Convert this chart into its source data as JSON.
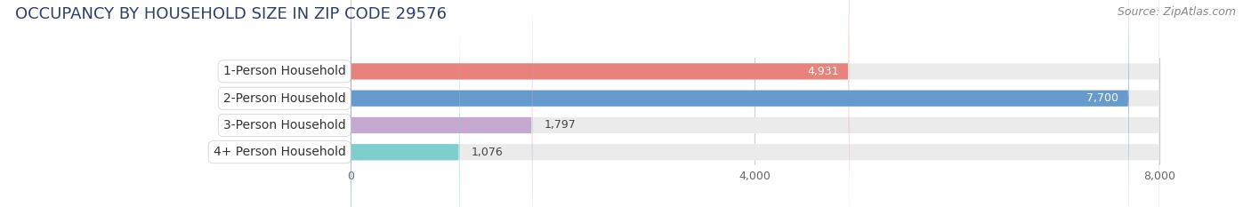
{
  "title": "OCCUPANCY BY HOUSEHOLD SIZE IN ZIP CODE 29576",
  "source": "Source: ZipAtlas.com",
  "categories": [
    "1-Person Household",
    "2-Person Household",
    "3-Person Household",
    "4+ Person Household"
  ],
  "values": [
    4931,
    7700,
    1797,
    1076
  ],
  "bar_colors": [
    "#E8827A",
    "#6699CC",
    "#C4A8D0",
    "#7ECECE"
  ],
  "bar_bg_color": "#EBEBEB",
  "xlim": [
    -1800,
    8600
  ],
  "data_xlim": [
    0,
    8000
  ],
  "xticks": [
    0,
    4000,
    8000
  ],
  "value_label_inside": [
    true,
    true,
    false,
    false
  ],
  "background_color": "#ffffff",
  "title_fontsize": 13,
  "source_fontsize": 9,
  "bar_label_fontsize": 10,
  "value_fontsize": 9,
  "tick_fontsize": 9,
  "bar_height": 0.6,
  "label_box_color": "#ffffff",
  "label_text_color": "#333333"
}
